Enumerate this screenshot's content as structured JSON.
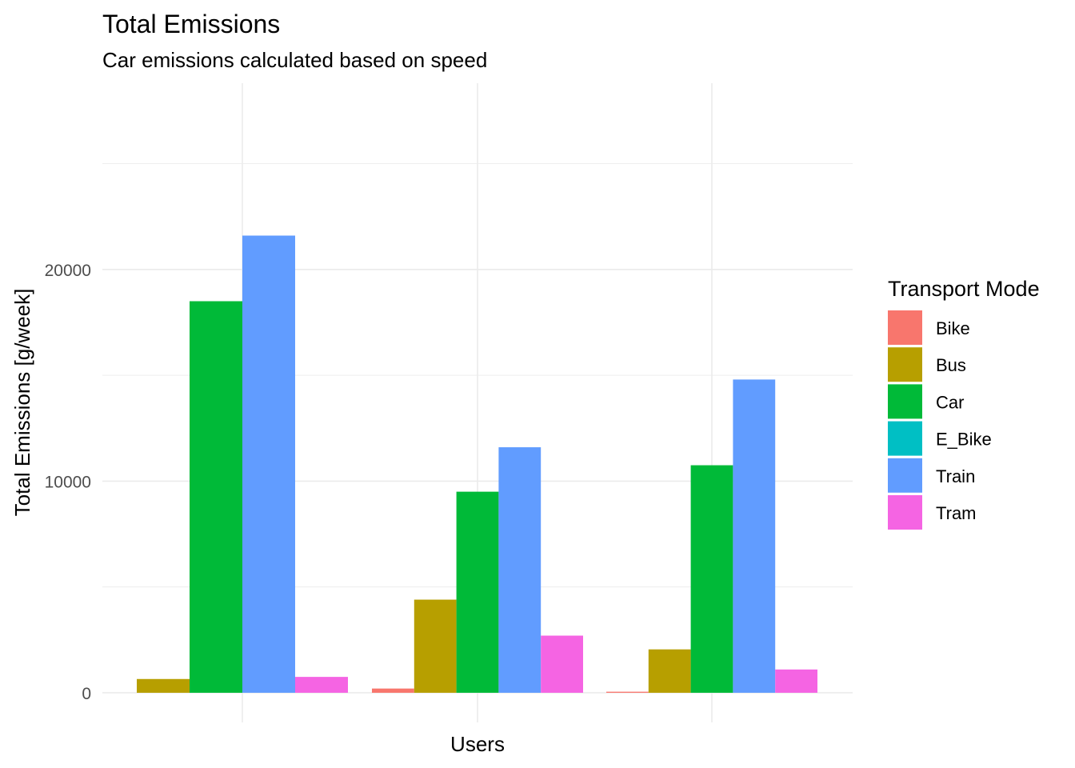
{
  "chart_data": {
    "type": "bar",
    "title": "Total Emissions",
    "subtitle": "Car emissions calculated based on speed",
    "xlabel": "Users",
    "ylabel": "Total Emissions [g/week]",
    "ylim": [
      -1400,
      28800
    ],
    "y_ticks": [
      0,
      10000,
      20000
    ],
    "y_tick_labels": [
      "0",
      "10000",
      "20000"
    ],
    "grid": true,
    "legend": {
      "title": "Transport Mode",
      "position": "right"
    },
    "groups": [
      {
        "bars": [
          {
            "series": "Bus",
            "value": 650
          },
          {
            "series": "Car",
            "value": 18500
          },
          {
            "series": "Train",
            "value": 21600
          },
          {
            "series": "Tram",
            "value": 750
          }
        ]
      },
      {
        "bars": [
          {
            "series": "Bike",
            "value": 200
          },
          {
            "series": "Bus",
            "value": 4400
          },
          {
            "series": "Car",
            "value": 9500
          },
          {
            "series": "Train",
            "value": 11600
          },
          {
            "series": "Tram",
            "value": 2700
          }
        ]
      },
      {
        "bars": [
          {
            "series": "Bike",
            "value": 50
          },
          {
            "series": "Bus",
            "value": 2050
          },
          {
            "series": "Car",
            "value": 10750
          },
          {
            "series": "Train",
            "value": 14800
          },
          {
            "series": "Tram",
            "value": 1100
          }
        ]
      }
    ],
    "series": [
      {
        "name": "Bike",
        "color": "#F8766D"
      },
      {
        "name": "Bus",
        "color": "#B79F00"
      },
      {
        "name": "Car",
        "color": "#00BA38"
      },
      {
        "name": "E_Bike",
        "color": "#00BFC4"
      },
      {
        "name": "Train",
        "color": "#619CFF"
      },
      {
        "name": "Tram",
        "color": "#F564E3"
      }
    ]
  }
}
